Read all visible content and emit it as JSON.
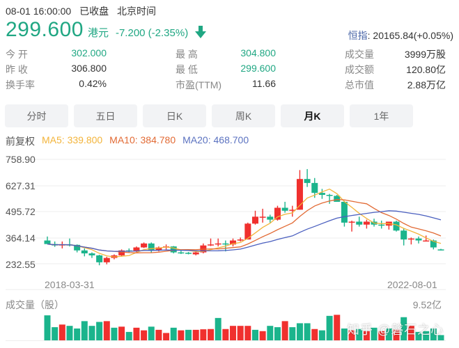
{
  "header": {
    "datetime": "08-01 16:00:00",
    "market_status": "已收盘",
    "timezone": "北京时间",
    "price": "299.600",
    "currency": "港元",
    "change": "-7.200 (-2.35%)",
    "direction_icon": "arrow-down-icon",
    "index_label": "恒指",
    "index_value": ": 20165.84(+0.05%)"
  },
  "stats": {
    "col1": [
      {
        "label": "今  开",
        "value": "302.000",
        "color": "green"
      },
      {
        "label": "昨  收",
        "value": "306.800",
        "color": "default"
      },
      {
        "label": "换手率",
        "value": "0.42%",
        "color": "default"
      }
    ],
    "col2": [
      {
        "label": "最  高",
        "value": "304.800",
        "color": "green"
      },
      {
        "label": "最  低",
        "value": "299.600",
        "color": "green"
      },
      {
        "label": "市盈(TTM)",
        "value": "11.66",
        "color": "default"
      }
    ],
    "col3": [
      {
        "label": "成交量",
        "value": "3999万股",
        "color": "default"
      },
      {
        "label": "成交额",
        "value": "120.80亿",
        "color": "default"
      },
      {
        "label": "总市值",
        "value": "2.88万亿",
        "color": "default"
      }
    ]
  },
  "tabs": [
    {
      "label": "分时",
      "active": false
    },
    {
      "label": "五日",
      "active": false
    },
    {
      "label": "日K",
      "active": false
    },
    {
      "label": "周K",
      "active": false
    },
    {
      "label": "月K",
      "active": true
    },
    {
      "label": "1年",
      "active": false
    }
  ],
  "indicators": {
    "adjust": "前复权",
    "ma5": "MA5: 339.800",
    "ma10": "MA10: 384.780",
    "ma20": "MA20: 468.700"
  },
  "volume": {
    "title": "成交量（股）",
    "max_label": "9.52亿"
  },
  "watermark": "知乎 @磐石之心",
  "colors": {
    "up": "#f0302e",
    "down": "#1bb48c",
    "ma5": "#f3b43a",
    "ma10": "#e26a34",
    "ma20": "#4a5fbf",
    "grid": "#eeeeee"
  },
  "chart_data": [
    {
      "type": "candlestick",
      "title": "月K (monthly candlestick, 前复权)",
      "xlabel": "",
      "ylabel": "",
      "y_ticks": [
        232.55,
        364.14,
        495.72,
        627.31,
        758.9
      ],
      "ylim": [
        166.76,
        758.9
      ],
      "x_tick_labels": [
        "2018-03-31",
        "2022-08-01"
      ],
      "grid": true,
      "legend": [
        "MA5: 339.800",
        "MA10: 384.780",
        "MA20: 468.700"
      ],
      "ohlc": [
        [
          350,
          370,
          335,
          332
        ],
        [
          332,
          345,
          318,
          325
        ],
        [
          325,
          345,
          310,
          330
        ],
        [
          330,
          360,
          320,
          328
        ],
        [
          328,
          330,
          290,
          300
        ],
        [
          300,
          310,
          270,
          285
        ],
        [
          285,
          290,
          262,
          275
        ],
        [
          275,
          278,
          225,
          240
        ],
        [
          240,
          268,
          230,
          262
        ],
        [
          262,
          280,
          255,
          275
        ],
        [
          275,
          305,
          270,
          300
        ],
        [
          300,
          310,
          290,
          295
        ],
        [
          295,
          320,
          292,
          315
        ],
        [
          315,
          340,
          312,
          335
        ],
        [
          335,
          340,
          290,
          300
        ],
        [
          300,
          320,
          295,
          315
        ],
        [
          315,
          330,
          305,
          320
        ],
        [
          320,
          322,
          285,
          290
        ],
        [
          290,
          298,
          282,
          288
        ],
        [
          288,
          292,
          280,
          285
        ],
        [
          280,
          295,
          275,
          290
        ],
        [
          290,
          335,
          285,
          325
        ],
        [
          325,
          360,
          322,
          330
        ],
        [
          330,
          360,
          320,
          335
        ],
        [
          335,
          350,
          295,
          330
        ],
        [
          330,
          360,
          320,
          350
        ],
        [
          350,
          365,
          345,
          355
        ],
        [
          355,
          440,
          355,
          435
        ],
        [
          435,
          500,
          430,
          470
        ],
        [
          470,
          510,
          440,
          470
        ],
        [
          470,
          480,
          440,
          455
        ],
        [
          455,
          525,
          450,
          515
        ],
        [
          515,
          545,
          490,
          500
        ],
        [
          500,
          525,
          470,
          505
        ],
        [
          505,
          705,
          505,
          660
        ],
        [
          660,
          710,
          620,
          640
        ],
        [
          640,
          665,
          565,
          590
        ],
        [
          590,
          610,
          560,
          580
        ],
        [
          580,
          585,
          535,
          575
        ],
        [
          575,
          580,
          550,
          545
        ],
        [
          545,
          550,
          420,
          440
        ],
        [
          440,
          450,
          395,
          445
        ],
        [
          445,
          470,
          420,
          430
        ],
        [
          430,
          455,
          410,
          445
        ],
        [
          445,
          460,
          420,
          430
        ],
        [
          430,
          450,
          410,
          425
        ],
        [
          425,
          440,
          405,
          445
        ],
        [
          445,
          450,
          395,
          400
        ],
        [
          400,
          410,
          325,
          355
        ],
        [
          355,
          365,
          330,
          360
        ],
        [
          360,
          370,
          335,
          350
        ],
        [
          350,
          375,
          345,
          350
        ],
        [
          350,
          355,
          305,
          315
        ],
        [
          305,
          308,
          300,
          300
        ]
      ],
      "ma5_last": 339.8,
      "ma10_last": 384.78,
      "ma20_last": 468.7
    },
    {
      "type": "bar",
      "title": "成交量（股）",
      "ylim": [
        0,
        9.52
      ],
      "unit": "亿股",
      "values": [
        9.5,
        5.0,
        6.0,
        5.5,
        4.5,
        7.3,
        5.5,
        7.0,
        7.3,
        4.8,
        5.2,
        3.2,
        4.8,
        3.8,
        5.2,
        4.0,
        2.8,
        4.8,
        3.8,
        4.0,
        4.0,
        4.2,
        4.3,
        8.5,
        4.3,
        5.5,
        5.5,
        5.5,
        4.0,
        3.5,
        5.5,
        5.0,
        7.3,
        5.0,
        6.5,
        6.5,
        4.3,
        3.8,
        9.3,
        9.7,
        4.5,
        3.8,
        4.3,
        3.5,
        4.8,
        3.5,
        4.5,
        4.0,
        8.8,
        5.5,
        3.2,
        3.5,
        4.5,
        2.0
      ],
      "colors_per_bar": [
        "down",
        "down",
        "up",
        "down",
        "down",
        "down",
        "down",
        "down",
        "up",
        "down",
        "up",
        "down",
        "up",
        "up",
        "down",
        "up",
        "up",
        "down",
        "up",
        "down",
        "up",
        "up",
        "up",
        "down",
        "up",
        "up",
        "up",
        "up",
        "down",
        "up",
        "down",
        "down",
        "up",
        "down",
        "down",
        "down",
        "up",
        "down",
        "down",
        "up",
        "down",
        "up",
        "down",
        "up",
        "down",
        "up",
        "down",
        "up",
        "down",
        "up",
        "down",
        "down",
        "down",
        "down"
      ]
    }
  ]
}
